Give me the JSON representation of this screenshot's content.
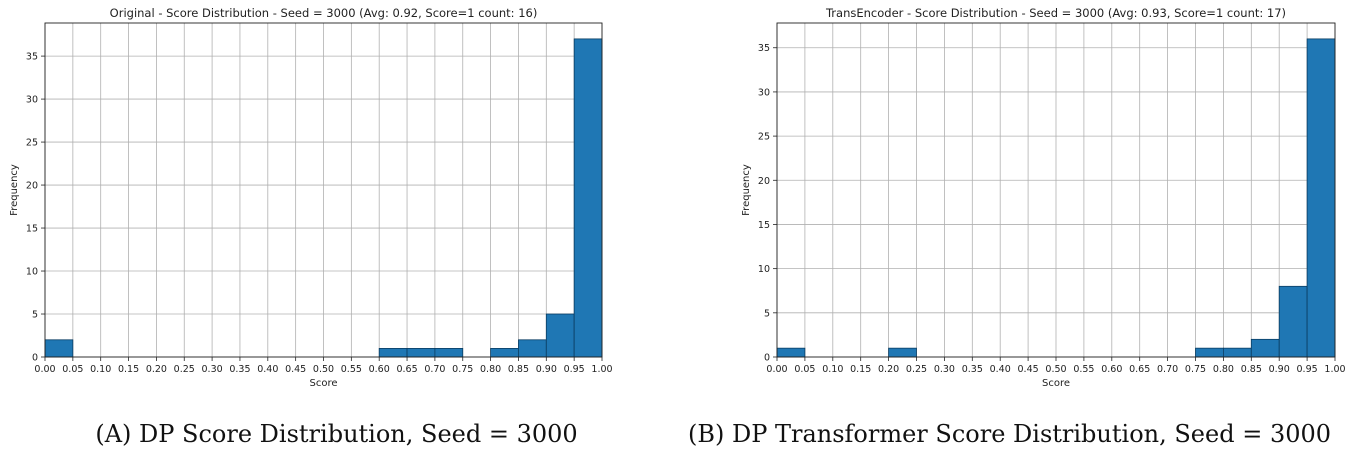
{
  "chart_data": [
    {
      "type": "bar",
      "title": "Original - Score Distribution - Seed = 3000 (Avg: 0.92, Score=1 count: 16)",
      "xlabel": "Score",
      "ylabel": "Frequency",
      "x_ticks": [
        "0.00",
        "0.05",
        "0.10",
        "0.15",
        "0.20",
        "0.25",
        "0.30",
        "0.35",
        "0.40",
        "0.45",
        "0.50",
        "0.55",
        "0.60",
        "0.65",
        "0.70",
        "0.75",
        "0.80",
        "0.85",
        "0.90",
        "0.95",
        "1.00"
      ],
      "y_ticks": [
        0,
        5,
        10,
        15,
        20,
        25,
        30,
        35
      ],
      "xlim": [
        0,
        1
      ],
      "ylim": [
        0,
        38.85
      ],
      "bin_width": 0.05,
      "bin_starts": [
        0.0,
        0.05,
        0.1,
        0.15,
        0.2,
        0.25,
        0.3,
        0.35,
        0.4,
        0.45,
        0.5,
        0.55,
        0.6,
        0.65,
        0.7,
        0.75,
        0.8,
        0.85,
        0.9,
        0.95
      ],
      "values": [
        2,
        0,
        0,
        0,
        0,
        0,
        0,
        0,
        0,
        0,
        0,
        0,
        1,
        1,
        1,
        0,
        1,
        2,
        5,
        37
      ],
      "grid": true,
      "color": "#1f77b4",
      "caption": "(A) DP Score Distribution, Seed = 3000"
    },
    {
      "type": "bar",
      "title": "TransEncoder - Score Distribution - Seed = 3000 (Avg: 0.93, Score=1 count: 17)",
      "xlabel": "Score",
      "ylabel": "Frequency",
      "x_ticks": [
        "0.00",
        "0.05",
        "0.10",
        "0.15",
        "0.20",
        "0.25",
        "0.30",
        "0.35",
        "0.40",
        "0.45",
        "0.50",
        "0.55",
        "0.60",
        "0.65",
        "0.70",
        "0.75",
        "0.80",
        "0.85",
        "0.90",
        "0.95",
        "1.00"
      ],
      "y_ticks": [
        0,
        5,
        10,
        15,
        20,
        25,
        30,
        35
      ],
      "xlim": [
        0,
        1
      ],
      "ylim": [
        0,
        37.8
      ],
      "bin_width": 0.05,
      "bin_starts": [
        0.0,
        0.05,
        0.1,
        0.15,
        0.2,
        0.25,
        0.3,
        0.35,
        0.4,
        0.45,
        0.5,
        0.55,
        0.6,
        0.65,
        0.7,
        0.75,
        0.8,
        0.85,
        0.9,
        0.95
      ],
      "values": [
        1,
        0,
        0,
        0,
        1,
        0,
        0,
        0,
        0,
        0,
        0,
        0,
        0,
        0,
        0,
        1,
        1,
        2,
        8,
        36
      ],
      "grid": true,
      "color": "#1f77b4",
      "caption": "(B) DP Transformer Score Distribution, Seed = 3000"
    }
  ]
}
